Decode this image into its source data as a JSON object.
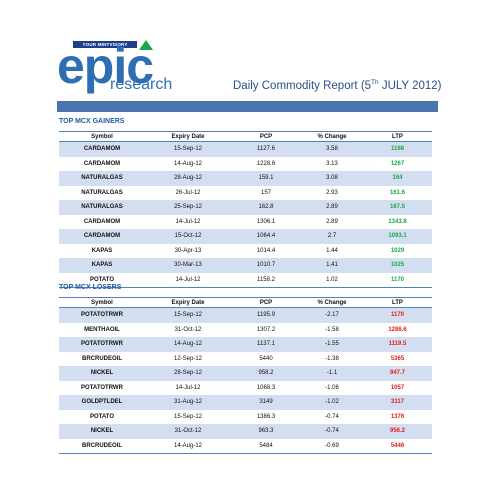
{
  "header": {
    "logo_main": "epic",
    "logo_sub": "research",
    "logo_tagline": "YOUR MINTVISORY",
    "report_title_pre": "Daily Commodity Report (5",
    "report_title_sup": "Th",
    "report_title_post": " JULY 2012)"
  },
  "colors": {
    "brand_blue": "#2e6fb4",
    "banner": "#4a74ad",
    "row_stripe": "#d3dff0",
    "gain_green": "#1aa84a",
    "loss_red": "#e0201b"
  },
  "gainers": {
    "title": "TOP MCX GAINERS",
    "columns": [
      "Symbol",
      "Expiry Date",
      "PCP",
      "% Change",
      "LTP"
    ],
    "rows": [
      [
        "CARDAMOM",
        "15-Sep-12",
        "1127.6",
        "3.58",
        "1168"
      ],
      [
        "CARDAMOM",
        "14-Aug-12",
        "1228.6",
        "3.13",
        "1267"
      ],
      [
        "NATURALGAS",
        "28-Aug-12",
        "159.1",
        "3.08",
        "164"
      ],
      [
        "NATURALGAS",
        "26-Jul-12",
        "157",
        "2.93",
        "161.6"
      ],
      [
        "NATURALGAS",
        "25-Sep-12",
        "162.8",
        "2.89",
        "167.5"
      ],
      [
        "CARDAMOM",
        "14-Jul-12",
        "1306.1",
        "2.89",
        "1343.8"
      ],
      [
        "CARDAMOM",
        "15-Oct-12",
        "1064.4",
        "2.7",
        "1093.1"
      ],
      [
        "KAPAS",
        "30-Apr-13",
        "1014.4",
        "1.44",
        "1029"
      ],
      [
        "KAPAS",
        "30-Mar-13",
        "1010.7",
        "1.41",
        "1025"
      ],
      [
        "POTATO",
        "14-Jul-12",
        "1158.2",
        "1.02",
        "1170"
      ]
    ]
  },
  "losers": {
    "title": "TOP MCX LOSERS",
    "columns": [
      "Symbol",
      "Expiry Date",
      "PCP",
      "% Change",
      "LTP"
    ],
    "rows": [
      [
        "POTATOTRWR",
        "15-Sep-12",
        "1195.9",
        "-2.17",
        "1170"
      ],
      [
        "MENTHAOIL",
        "31-Oct-12",
        "1307.2",
        "-1.58",
        "1286.6"
      ],
      [
        "POTATOTRWR",
        "14-Aug-12",
        "1137.1",
        "-1.55",
        "1119.5"
      ],
      [
        "BRCRUDEOIL",
        "12-Sep-12",
        "5440",
        "-1.38",
        "5365"
      ],
      [
        "NICKEL",
        "28-Sep-12",
        "958.2",
        "-1.1",
        "947.7"
      ],
      [
        "POTATOTRWR",
        "14-Jul-12",
        "1068.3",
        "-1.06",
        "1057"
      ],
      [
        "GOLDPTLDEL",
        "31-Aug-12",
        "3149",
        "-1.02",
        "3117"
      ],
      [
        "POTATO",
        "15-Sep-12",
        "1386.3",
        "-0.74",
        "1376"
      ],
      [
        "NICKEL",
        "31-Oct-12",
        "963.3",
        "-0.74",
        "956.2"
      ],
      [
        "BRCRUDEOIL",
        "14-Aug-12",
        "5484",
        "-0.69",
        "5446"
      ]
    ]
  }
}
